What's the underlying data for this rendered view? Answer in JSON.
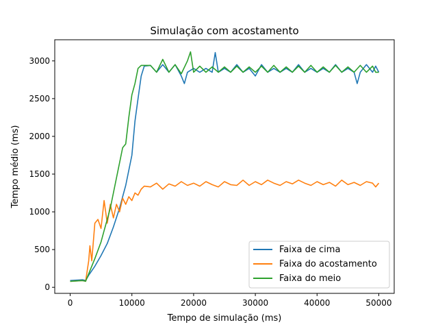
{
  "chart_data": {
    "type": "line",
    "title": "Simulação com acostamento",
    "xlabel": "Tempo de simulação (ms)",
    "ylabel": "Tempo médio (ms)",
    "xlim": [
      -2500,
      52500
    ],
    "ylim": [
      -80,
      3280
    ],
    "xticks": [
      0,
      10000,
      20000,
      30000,
      40000,
      50000
    ],
    "yticks": [
      0,
      500,
      1000,
      1500,
      2000,
      2500,
      3000
    ],
    "grid": false,
    "legend_position": "lower-right",
    "series": [
      {
        "name": "Faixa de cima",
        "color": "#1f77b4",
        "x": [
          0,
          2000,
          2500,
          3000,
          4000,
          5000,
          6000,
          7000,
          8000,
          9000,
          10000,
          10500,
          11000,
          11500,
          12000,
          13000,
          14000,
          15000,
          16000,
          17000,
          18000,
          18500,
          19000,
          20000,
          21000,
          22000,
          23000,
          23500,
          24000,
          25000,
          26000,
          27000,
          28000,
          29000,
          30000,
          31000,
          32000,
          33000,
          34000,
          35000,
          36000,
          37000,
          38000,
          39000,
          40000,
          41000,
          42000,
          43000,
          44000,
          45000,
          46000,
          46500,
          47000,
          48000,
          49000,
          49500,
          50000
        ],
        "y": [
          90,
          100,
          90,
          160,
          280,
          420,
          580,
          800,
          1050,
          1350,
          1750,
          2200,
          2500,
          2800,
          2930,
          2940,
          2850,
          2950,
          2850,
          2950,
          2800,
          2700,
          2850,
          2900,
          2850,
          2900,
          2850,
          3110,
          2850,
          2900,
          2850,
          2950,
          2850,
          2900,
          2800,
          2950,
          2850,
          2900,
          2850,
          2900,
          2850,
          2950,
          2850,
          2900,
          2850,
          2900,
          2850,
          2950,
          2850,
          2900,
          2850,
          2700,
          2850,
          2950,
          2850,
          2930,
          2850
        ]
      },
      {
        "name": "Faixa do acostamento",
        "color": "#ff7f0e",
        "x": [
          0,
          2000,
          2500,
          3000,
          3200,
          3500,
          4000,
          4500,
          5000,
          5500,
          6000,
          6500,
          7000,
          7500,
          8000,
          8500,
          9000,
          9500,
          10000,
          10500,
          11000,
          11500,
          12000,
          13000,
          14000,
          15000,
          16000,
          17000,
          18000,
          19000,
          20000,
          21000,
          22000,
          23000,
          24000,
          25000,
          26000,
          27000,
          28000,
          29000,
          30000,
          31000,
          32000,
          33000,
          34000,
          35000,
          36000,
          37000,
          38000,
          39000,
          40000,
          41000,
          42000,
          43000,
          44000,
          45000,
          46000,
          47000,
          48000,
          49000,
          49500,
          50000
        ],
        "y": [
          80,
          90,
          80,
          350,
          550,
          350,
          850,
          900,
          780,
          1150,
          850,
          1100,
          920,
          1100,
          1000,
          1180,
          1100,
          1200,
          1150,
          1250,
          1220,
          1300,
          1340,
          1330,
          1380,
          1300,
          1370,
          1340,
          1400,
          1350,
          1380,
          1340,
          1400,
          1360,
          1330,
          1400,
          1360,
          1350,
          1420,
          1350,
          1400,
          1360,
          1420,
          1380,
          1350,
          1400,
          1370,
          1420,
          1380,
          1350,
          1400,
          1360,
          1390,
          1340,
          1420,
          1360,
          1390,
          1350,
          1400,
          1380,
          1330,
          1380
        ]
      },
      {
        "name": "Faixa do meio",
        "color": "#2ca02c",
        "x": [
          0,
          2000,
          2500,
          3000,
          4000,
          5000,
          5500,
          6000,
          6500,
          7000,
          7500,
          8000,
          8500,
          9000,
          9500,
          10000,
          10500,
          11000,
          11500,
          12000,
          13000,
          14000,
          15000,
          16000,
          17000,
          18000,
          19000,
          19500,
          20000,
          21000,
          22000,
          23000,
          24000,
          25000,
          26000,
          27000,
          28000,
          29000,
          30000,
          31000,
          32000,
          33000,
          34000,
          35000,
          36000,
          37000,
          38000,
          39000,
          40000,
          41000,
          42000,
          43000,
          44000,
          45000,
          46000,
          47000,
          48000,
          49000,
          49500,
          50000
        ],
        "y": [
          80,
          90,
          80,
          180,
          380,
          600,
          750,
          900,
          1050,
          1250,
          1450,
          1650,
          1850,
          1900,
          2250,
          2550,
          2700,
          2900,
          2940,
          2940,
          2940,
          2850,
          3020,
          2850,
          2950,
          2830,
          3000,
          3120,
          2850,
          2930,
          2850,
          2920,
          2850,
          2920,
          2850,
          2930,
          2850,
          2920,
          2850,
          2930,
          2850,
          2940,
          2850,
          2920,
          2850,
          2930,
          2850,
          2940,
          2850,
          2920,
          2850,
          2940,
          2850,
          2920,
          2850,
          2940,
          2850,
          2930,
          2850,
          2850
        ]
      }
    ]
  }
}
